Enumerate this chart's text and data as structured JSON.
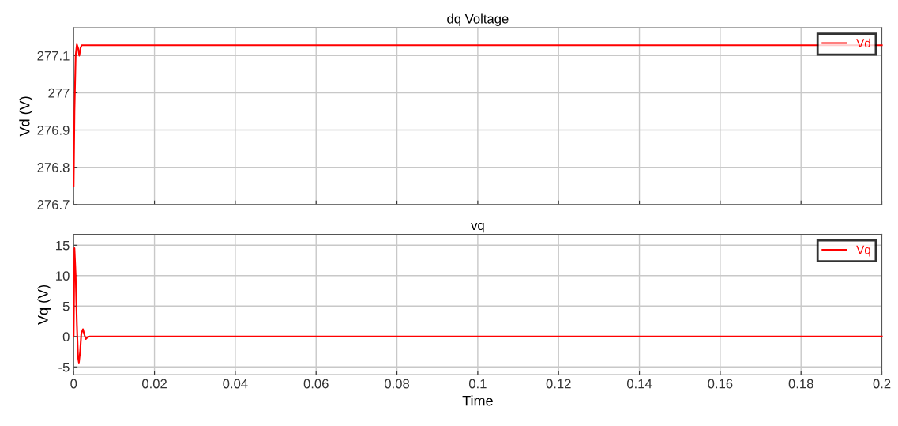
{
  "chart_data": [
    {
      "type": "line",
      "title": "dq Voltage",
      "ylabel": "Vd (V)",
      "tick_labels": "y",
      "grid": true,
      "legend": "top right",
      "xlim": [
        0,
        0.2
      ],
      "xticks": [
        0,
        0.02,
        0.04,
        0.06,
        0.08,
        0.1,
        0.12,
        0.14,
        0.16,
        0.18,
        0.2
      ],
      "ylim": [
        276.7,
        277.175
      ],
      "yticks": [
        276.7,
        276.8,
        276.9,
        277,
        277.1
      ],
      "series": [
        {
          "name": "Vd",
          "color": "#ff0000",
          "x": [
            0,
            0.0002,
            0.0005,
            0.0008,
            0.0011,
            0.0014,
            0.0017,
            0.002,
            0.003,
            0.2
          ],
          "values": [
            276.75,
            276.95,
            277.1,
            277.13,
            277.12,
            277.1,
            277.12,
            277.128,
            277.128,
            277.128
          ]
        }
      ]
    },
    {
      "type": "line",
      "title": "vq",
      "ylabel": "Vq (V)",
      "xlabel": "Time",
      "grid": true,
      "legend": "top right",
      "xlim": [
        0,
        0.2
      ],
      "xticks": [
        0,
        0.02,
        0.04,
        0.06,
        0.08,
        0.1,
        0.12,
        0.14,
        0.16,
        0.18,
        0.2
      ],
      "ylim": [
        -6.3,
        16.8
      ],
      "yticks": [
        -5,
        0,
        5,
        10,
        15
      ],
      "series": [
        {
          "name": "Vq",
          "color": "#ff0000",
          "x": [
            0,
            0.0002,
            0.0005,
            0.0008,
            0.0011,
            0.0013,
            0.0016,
            0.0019,
            0.0023,
            0.0027,
            0.003,
            0.0035,
            0.004,
            0.2
          ],
          "values": [
            0,
            14.5,
            10,
            2,
            -3.5,
            -4.3,
            -2.5,
            0.5,
            1.2,
            0.2,
            -0.4,
            -0.1,
            0,
            0
          ]
        }
      ]
    }
  ]
}
